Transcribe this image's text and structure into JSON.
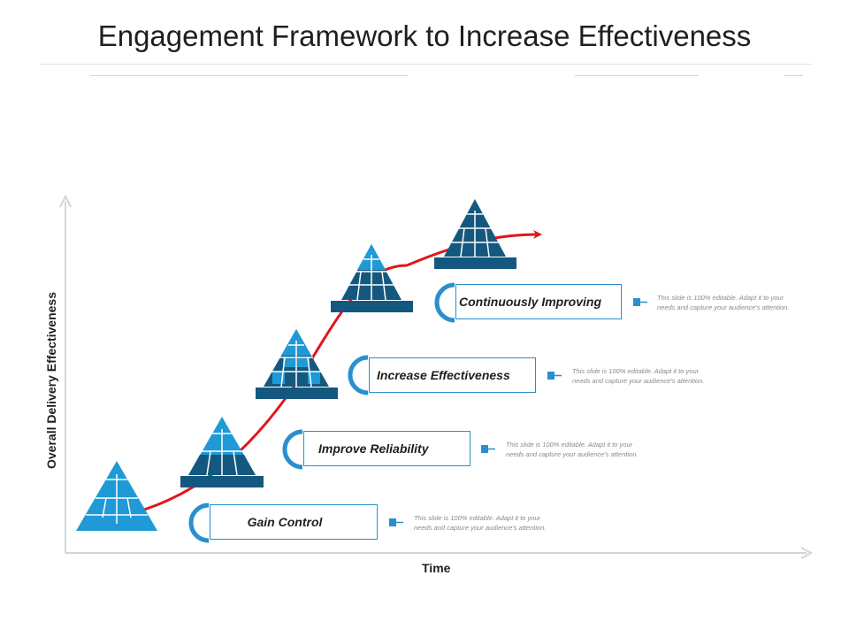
{
  "title": "Engagement Framework to Increase Effectiveness",
  "axes": {
    "x_label": "Time",
    "y_label": "Overall Delivery Effectiveness"
  },
  "stages": [
    {
      "label": "Gain Control",
      "description_line1": "This slide is 100% editable.  Adapt it to your",
      "description_line2": "needs and capture your audience's attention."
    },
    {
      "label": "Improve Reliability",
      "description_line1": "This slide is 100% editable.  Adapt it to your",
      "description_line2": "needs and capture your audience's attention."
    },
    {
      "label": "Increase Effectiveness",
      "description_line1": "This slide is 100% editable.  Adapt it to your",
      "description_line2": "needs and capture your audience's attention."
    },
    {
      "label": "Continuously Improving",
      "description_line1": "This slide is 100% editable.  Adapt it to your",
      "description_line2": "needs and capture your audience's attention."
    }
  ],
  "colors": {
    "light_blue": "#1f9ad6",
    "dark_blue": "#15587f",
    "mid_blue": "#2a8fce",
    "arrow_red": "#e0161b",
    "axis_gray": "#cfd6dc"
  }
}
